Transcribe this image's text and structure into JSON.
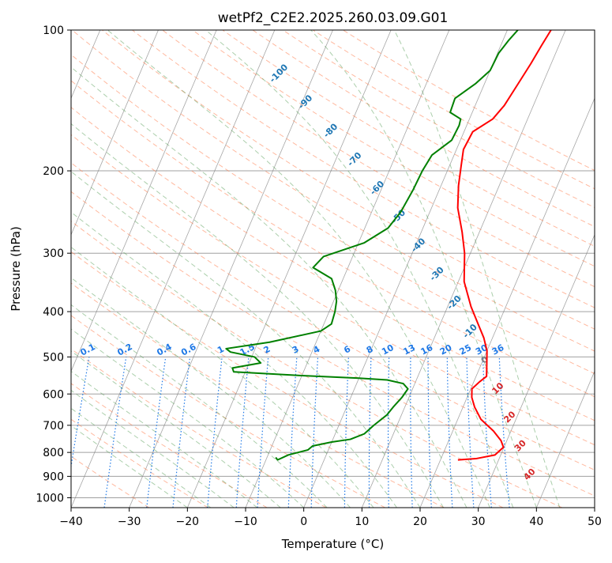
{
  "chart_data": {
    "type": "line",
    "title": "wetPf2_C2E2.2025.260.03.09.G01",
    "xlabel": "Temperature (°C)",
    "ylabel": "Pressure (hPa)",
    "xlim": [
      -40,
      50
    ],
    "ylim": [
      1050,
      100
    ],
    "y_scale": "log",
    "grid": true,
    "x_ticks": [
      -40,
      -30,
      -20,
      -10,
      0,
      10,
      20,
      30,
      40,
      50
    ],
    "y_ticks": [
      100,
      200,
      300,
      400,
      500,
      600,
      700,
      800,
      900,
      1000
    ],
    "series": [
      {
        "color": "#ff0000",
        "points": [
          [
            23,
            830
          ],
          [
            26,
            825
          ],
          [
            29,
            810
          ],
          [
            29.9,
            780
          ],
          [
            29,
            755
          ],
          [
            27,
            720
          ],
          [
            24,
            680
          ],
          [
            22,
            640
          ],
          [
            20.8,
            610
          ],
          [
            20.2,
            585
          ],
          [
            21,
            565
          ],
          [
            21.8,
            550
          ],
          [
            21,
            520
          ],
          [
            20,
            485
          ],
          [
            18.5,
            455
          ],
          [
            16.5,
            425
          ],
          [
            14,
            390
          ],
          [
            11,
            345
          ],
          [
            9,
            300
          ],
          [
            7,
            270
          ],
          [
            4.5,
            240
          ],
          [
            3,
            215
          ],
          [
            2,
            195
          ],
          [
            1.2,
            180
          ],
          [
            1.5,
            165
          ],
          [
            4,
            155
          ],
          [
            5,
            145
          ],
          [
            5.8,
            130
          ],
          [
            6.5,
            118
          ],
          [
            7,
            108
          ],
          [
            7.5,
            100
          ]
        ]
      },
      {
        "color": "#008000",
        "points": [
          [
            -8.5,
            820
          ],
          [
            -8,
            830
          ],
          [
            -6.5,
            810
          ],
          [
            -3.5,
            790
          ],
          [
            -3,
            775
          ],
          [
            0,
            760
          ],
          [
            3,
            750
          ],
          [
            5,
            730
          ],
          [
            6,
            700
          ],
          [
            7.5,
            665
          ],
          [
            8,
            640
          ],
          [
            8.8,
            610
          ],
          [
            9.2,
            585
          ],
          [
            8,
            570
          ],
          [
            5,
            560
          ],
          [
            0,
            555
          ],
          [
            -10,
            548
          ],
          [
            -22,
            538
          ],
          [
            -22.5,
            528
          ],
          [
            -18,
            515
          ],
          [
            -19.5,
            500
          ],
          [
            -24,
            488
          ],
          [
            -25,
            480
          ],
          [
            -18,
            465
          ],
          [
            -10,
            440
          ],
          [
            -8.7,
            425
          ],
          [
            -9,
            400
          ],
          [
            -9.5,
            380
          ],
          [
            -10.5,
            360
          ],
          [
            -12,
            340
          ],
          [
            -16,
            322
          ],
          [
            -15,
            305
          ],
          [
            -9,
            285
          ],
          [
            -6,
            265
          ],
          [
            -5,
            245
          ],
          [
            -4.5,
            220
          ],
          [
            -4.3,
            200
          ],
          [
            -3.8,
            185
          ],
          [
            -1.5,
            172
          ],
          [
            -1.3,
            160
          ],
          [
            -1.5,
            155
          ],
          [
            -3.8,
            150
          ],
          [
            -4,
            140
          ],
          [
            -1.5,
            130
          ],
          [
            0,
            122
          ],
          [
            0.2,
            112
          ],
          [
            1,
            105
          ],
          [
            1.8,
            100
          ]
        ]
      }
    ],
    "isotherm_interval": 10,
    "dry_adiabat_labels": [
      "-100",
      "-90",
      "-80",
      "-70",
      "-60",
      "-50",
      "-40",
      "-30",
      "-20",
      "-10",
      "0",
      "10",
      "20",
      "30",
      "40"
    ],
    "mixing_ratio_labels": [
      "0.1",
      "0.2",
      "0.4",
      "0.6",
      "1",
      "1.5",
      "2",
      "3",
      "4",
      "6",
      "8",
      "10",
      "13",
      "16",
      "20",
      "25",
      "30",
      "36"
    ],
    "mixing_ratio_values": [
      0.1,
      0.2,
      0.4,
      0.6,
      1,
      1.5,
      2,
      3,
      4,
      6,
      8,
      10,
      13,
      16,
      20,
      25,
      30,
      36
    ],
    "colors": {
      "isotherm": "#808080",
      "isobar": "#a0a0a0",
      "dry_adiabat": "#ff7f50",
      "moist_adiabat": "#5aa05a",
      "mixing_ratio": "#1e78e6",
      "cold_label": "#1f77b4",
      "warm_label": "#d62728",
      "zero_label": "#808080"
    }
  }
}
